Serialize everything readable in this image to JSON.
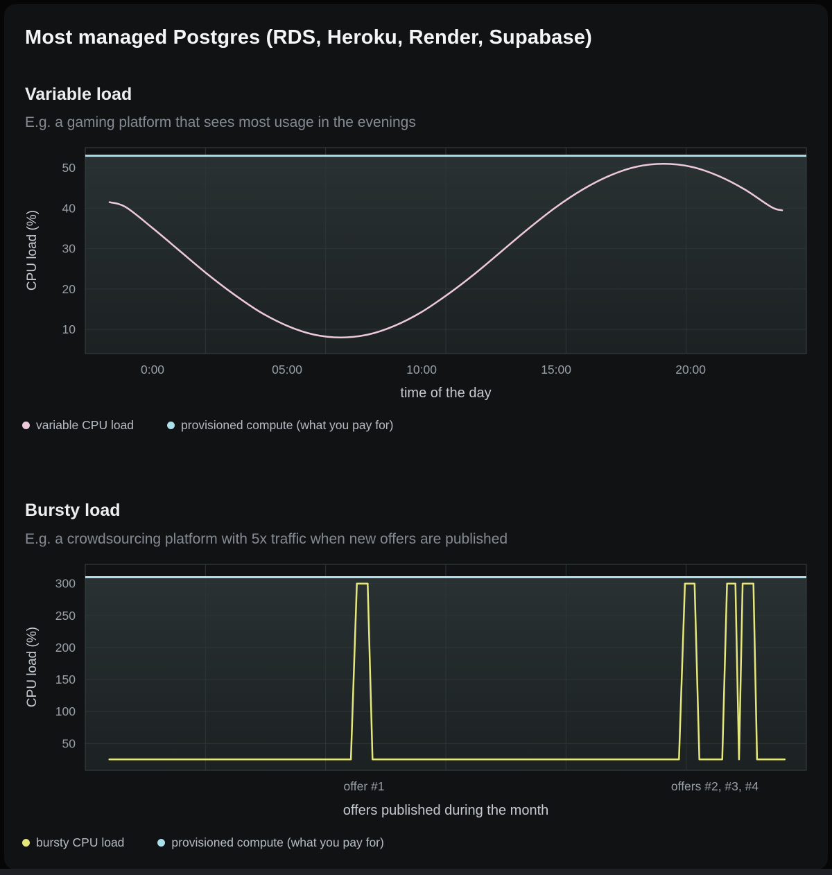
{
  "page": {
    "title": "Most managed Postgres (RDS, Heroku, Render, Supabase)"
  },
  "colors": {
    "card_bg": "#101213",
    "pink": "#edc9dc",
    "cyan": "#abdfe9",
    "yellow": "#e5e77d",
    "grid": "#2d3637",
    "plot_border": "#3a4243",
    "fill_top": "#293132",
    "fill_bottom": "#1c2122",
    "tick_text": "#98a0a9"
  },
  "chart_data": [
    {
      "type": "line",
      "title": "Variable load",
      "subtitle": "E.g. a gaming platform that sees most usage in the evenings",
      "xlabel": "time of the day",
      "ylabel": "CPU load (%)",
      "x_domain": [
        -2.5,
        24.3
      ],
      "y_domain": [
        4,
        55
      ],
      "x_ticks": [
        {
          "v": 0,
          "label": "0:00"
        },
        {
          "v": 5,
          "label": "05:00"
        },
        {
          "v": 10,
          "label": "10:00"
        },
        {
          "v": 15,
          "label": "15:00"
        },
        {
          "v": 20,
          "label": "20:00"
        }
      ],
      "y_ticks": [
        10,
        20,
        30,
        40,
        50
      ],
      "grid_x_divisions": 6,
      "grid": true,
      "legend_position": "bottom-left",
      "legend": [
        {
          "label": "variable CPU load",
          "color": "#edc9dc"
        },
        {
          "label": "provisioned compute (what you pay for)",
          "color": "#abdfe9"
        }
      ],
      "provisioned_value": 53,
      "series": {
        "name": "variable CPU load",
        "color": "#edc9dc",
        "smooth": true,
        "points": [
          [
            -1.6,
            41.5
          ],
          [
            -1,
            40.3
          ],
          [
            0,
            35.1
          ],
          [
            1,
            29.5
          ],
          [
            2,
            23.9
          ],
          [
            3,
            18.8
          ],
          [
            4,
            14.3
          ],
          [
            5,
            10.9
          ],
          [
            6,
            8.7
          ],
          [
            7,
            8.0
          ],
          [
            8,
            8.7
          ],
          [
            9,
            10.9
          ],
          [
            10,
            14.3
          ],
          [
            11,
            18.8
          ],
          [
            12,
            23.9
          ],
          [
            13,
            29.5
          ],
          [
            14,
            35.1
          ],
          [
            15,
            40.3
          ],
          [
            16,
            44.7
          ],
          [
            17,
            48.1
          ],
          [
            18,
            50.3
          ],
          [
            19,
            51.0
          ],
          [
            20,
            50.3
          ],
          [
            21,
            48.1
          ],
          [
            22,
            44.7
          ],
          [
            23,
            40.3
          ],
          [
            23.4,
            39.5
          ]
        ]
      }
    },
    {
      "type": "line",
      "title": "Bursty load",
      "subtitle": "E.g. a crowdsourcing platform with 5x traffic when new offers are published",
      "xlabel": "offers published during the month",
      "ylabel": "CPU load (%)",
      "x_domain": [
        0,
        30
      ],
      "y_domain": [
        8,
        330
      ],
      "x_ticks": [],
      "y_ticks": [
        50,
        100,
        150,
        200,
        250,
        300
      ],
      "grid_x_divisions": 6,
      "grid": true,
      "legend_position": "bottom-left",
      "legend": [
        {
          "label": "bursty CPU load",
          "color": "#e5e77d"
        },
        {
          "label": "provisioned compute (what you pay for)",
          "color": "#abdfe9"
        }
      ],
      "provisioned_value": 310,
      "annotations": [
        {
          "x": 11.6,
          "label": "offer #1"
        },
        {
          "x": 26.2,
          "label": "offers #2, #3, #4"
        }
      ],
      "series": {
        "name": "bursty CPU load",
        "color": "#e5e77d",
        "smooth": false,
        "points": [
          [
            1,
            25
          ],
          [
            11.05,
            25
          ],
          [
            11.3,
            300
          ],
          [
            11.75,
            300
          ],
          [
            11.95,
            25
          ],
          [
            24.7,
            25
          ],
          [
            24.95,
            300
          ],
          [
            25.35,
            300
          ],
          [
            25.55,
            25
          ],
          [
            26.5,
            25
          ],
          [
            26.7,
            300
          ],
          [
            27.05,
            300
          ],
          [
            27.2,
            25
          ],
          [
            27.35,
            300
          ],
          [
            27.8,
            300
          ],
          [
            27.95,
            25
          ],
          [
            29.1,
            25
          ]
        ]
      }
    }
  ]
}
